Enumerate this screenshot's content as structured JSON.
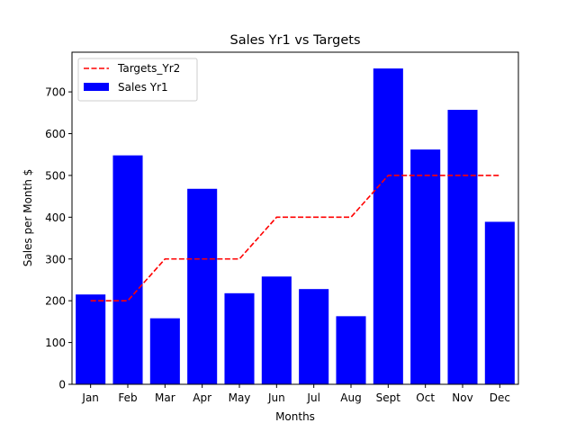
{
  "chart_data": {
    "type": "bar",
    "title": "Sales Yr1 vs Targets",
    "xlabel": "Months",
    "ylabel": "Sales per Month $",
    "categories": [
      "Jan",
      "Feb",
      "Mar",
      "Apr",
      "May",
      "Jun",
      "Jul",
      "Aug",
      "Sept",
      "Oct",
      "Nov",
      "Dec"
    ],
    "ylim": [
      0,
      795
    ],
    "yticks": [
      0,
      100,
      200,
      300,
      400,
      500,
      600,
      700
    ],
    "grid": false,
    "legend_position": "top-left",
    "series": [
      {
        "name": "Sales Yr1",
        "type": "bar",
        "color": "#0000ff",
        "values": [
          215,
          548,
          158,
          468,
          218,
          258,
          228,
          163,
          756,
          562,
          657,
          389
        ]
      },
      {
        "name": "Targets_Yr2",
        "type": "line",
        "style": "dashed",
        "color": "#ff0000",
        "values": [
          200,
          200,
          300,
          300,
          300,
          400,
          400,
          400,
          500,
          500,
          500,
          500
        ]
      }
    ]
  }
}
